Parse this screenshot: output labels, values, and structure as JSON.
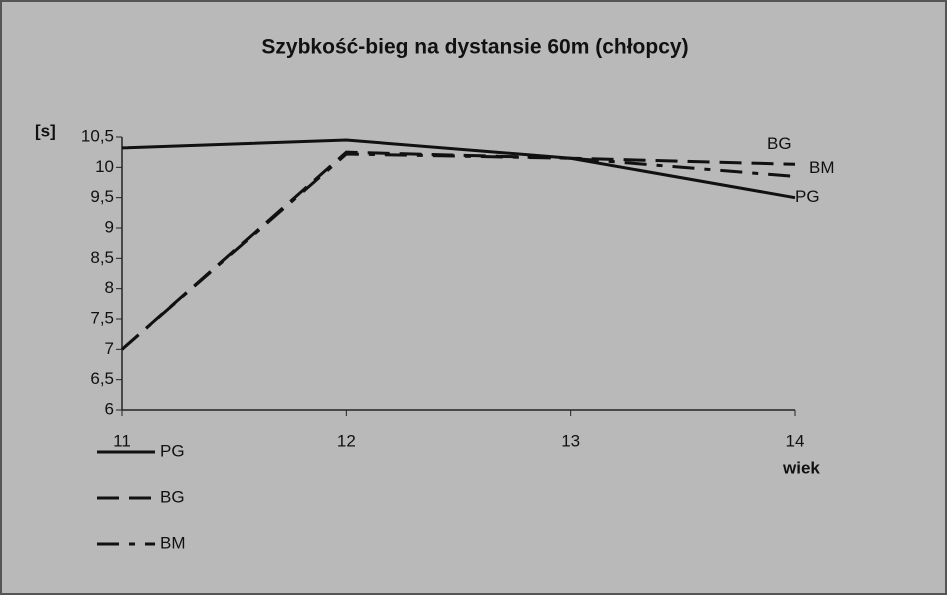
{
  "chart_data": {
    "type": "line",
    "title": "Szybkość-bieg na dystansie 60m (chłopcy)",
    "y_label": "[s]",
    "x_label": "wiek",
    "categories": [
      "11",
      "12",
      "13",
      "14"
    ],
    "series": [
      {
        "name": "PG",
        "color": "#111111",
        "style": "solid",
        "values": [
          10.32,
          10.45,
          10.15,
          9.5
        ]
      },
      {
        "name": "BG",
        "color": "#111111",
        "style": "dashed",
        "values": [
          7.0,
          10.25,
          10.15,
          10.05
        ]
      },
      {
        "name": "BM",
        "color": "#111111",
        "style": "dashdot",
        "values": [
          7.0,
          10.22,
          10.15,
          9.85
        ]
      }
    ],
    "ylim": [
      6,
      10.5
    ],
    "yticks": [
      {
        "value": 6,
        "label": "6"
      },
      {
        "value": 6.5,
        "label": "6,5"
      },
      {
        "value": 7,
        "label": "7"
      },
      {
        "value": 7.5,
        "label": "7,5"
      },
      {
        "value": 8,
        "label": "8"
      },
      {
        "value": 8.5,
        "label": "8,5"
      },
      {
        "value": 9,
        "label": "9"
      },
      {
        "value": 9.5,
        "label": "9,5"
      },
      {
        "value": 10,
        "label": "10"
      },
      {
        "value": 10.5,
        "label": "10,5"
      }
    ],
    "legend": "bottom-left",
    "grid": false
  }
}
